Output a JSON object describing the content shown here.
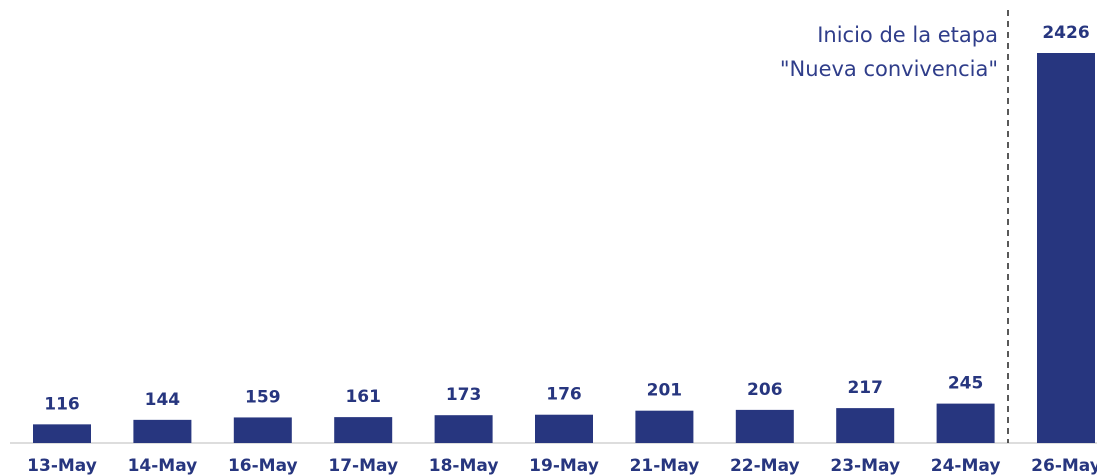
{
  "chart_data": {
    "type": "bar",
    "categories": [
      "13-May",
      "14-May",
      "16-May",
      "17-May",
      "18-May",
      "19-May",
      "21-May",
      "22-May",
      "23-May",
      "24-May",
      "26-May"
    ],
    "values": [
      116,
      144,
      159,
      161,
      173,
      176,
      201,
      206,
      217,
      245,
      2426
    ],
    "color": "#27367f",
    "annotation": [
      "Inicio de la etapa",
      "\"Nueva convivencia\""
    ]
  }
}
